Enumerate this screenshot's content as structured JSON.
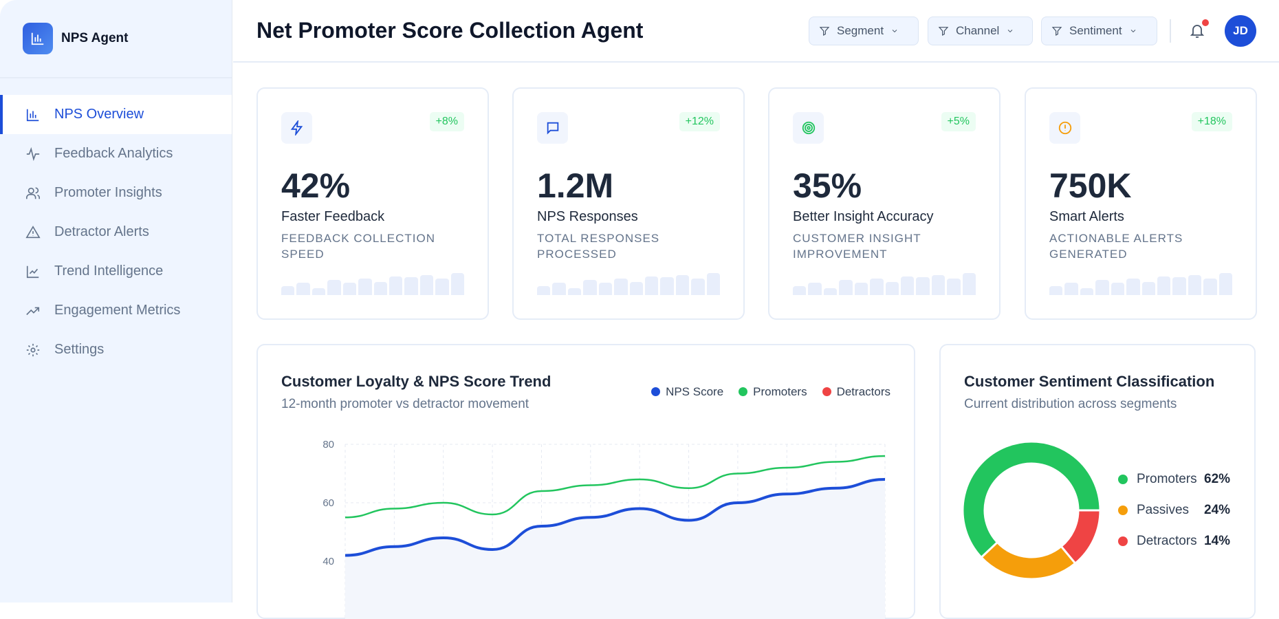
{
  "app": {
    "name": "NPS Agent"
  },
  "sidebar": {
    "items": [
      {
        "label": "NPS Overview",
        "icon": "bar-chart-icon",
        "active": true
      },
      {
        "label": "Feedback Analytics",
        "icon": "activity-icon"
      },
      {
        "label": "Promoter Insights",
        "icon": "users-icon"
      },
      {
        "label": "Detractor Alerts",
        "icon": "warning-icon"
      },
      {
        "label": "Trend Intelligence",
        "icon": "line-chart-icon"
      },
      {
        "label": "Engagement Metrics",
        "icon": "trending-up-icon"
      },
      {
        "label": "Settings",
        "icon": "gear-icon"
      }
    ]
  },
  "header": {
    "title": "Net Promoter Score Collection Agent",
    "filters": [
      "Segment",
      "Channel",
      "Sentiment"
    ],
    "avatar": "JD",
    "has_notification": true
  },
  "kpis": [
    {
      "value": "42%",
      "label": "Faster Feedback",
      "sub": "FEEDBACK COLLECTION SPEED",
      "change": "+8%",
      "icon": "lightning-icon",
      "icon_color": "#1d4ed8"
    },
    {
      "value": "1.2M",
      "label": "NPS Responses",
      "sub": "TOTAL RESPONSES PROCESSED",
      "change": "+12%",
      "icon": "message-icon",
      "icon_color": "#1d4ed8"
    },
    {
      "value": "35%",
      "label": "Better Insight Accuracy",
      "sub": "CUSTOMER INSIGHT IMPROVEMENT",
      "change": "+5%",
      "icon": "target-icon",
      "icon_color": "#22c55e"
    },
    {
      "value": "750K",
      "label": "Smart Alerts",
      "sub": "ACTIONABLE ALERTS GENERATED",
      "change": "+18%",
      "icon": "alert-circle-icon",
      "icon_color": "#f59e0b"
    }
  ],
  "sparkline": [
    40,
    55,
    30,
    70,
    55,
    75,
    60,
    85,
    80,
    90,
    75,
    100
  ],
  "chart_data": [
    {
      "type": "line",
      "title": "Customer Loyalty & NPS Score Trend",
      "subtitle": "12-month promoter vs detractor movement",
      "ylim": [
        20,
        80
      ],
      "yticks": [
        80,
        60,
        40
      ],
      "grid": true,
      "legend": "top-right",
      "series": [
        {
          "name": "NPS Score",
          "color": "#1d4ed8",
          "values": [
            42,
            45,
            48,
            44,
            52,
            55,
            58,
            54,
            60,
            63,
            65,
            68
          ]
        },
        {
          "name": "Promoters",
          "color": "#22c55e",
          "values": [
            55,
            58,
            60,
            56,
            64,
            66,
            68,
            65,
            70,
            72,
            74,
            76
          ]
        },
        {
          "name": "Detractors",
          "color": "#ef4444",
          "values": []
        }
      ]
    },
    {
      "type": "pie",
      "title": "Customer Sentiment Classification",
      "subtitle": "Current distribution across segments",
      "slices": [
        {
          "name": "Promoters",
          "value": 62,
          "label": "62%",
          "color": "#22c55e"
        },
        {
          "name": "Passives",
          "value": 24,
          "label": "24%",
          "color": "#f59e0b"
        },
        {
          "name": "Detractors",
          "value": 14,
          "label": "14%",
          "color": "#ef4444"
        }
      ]
    }
  ]
}
